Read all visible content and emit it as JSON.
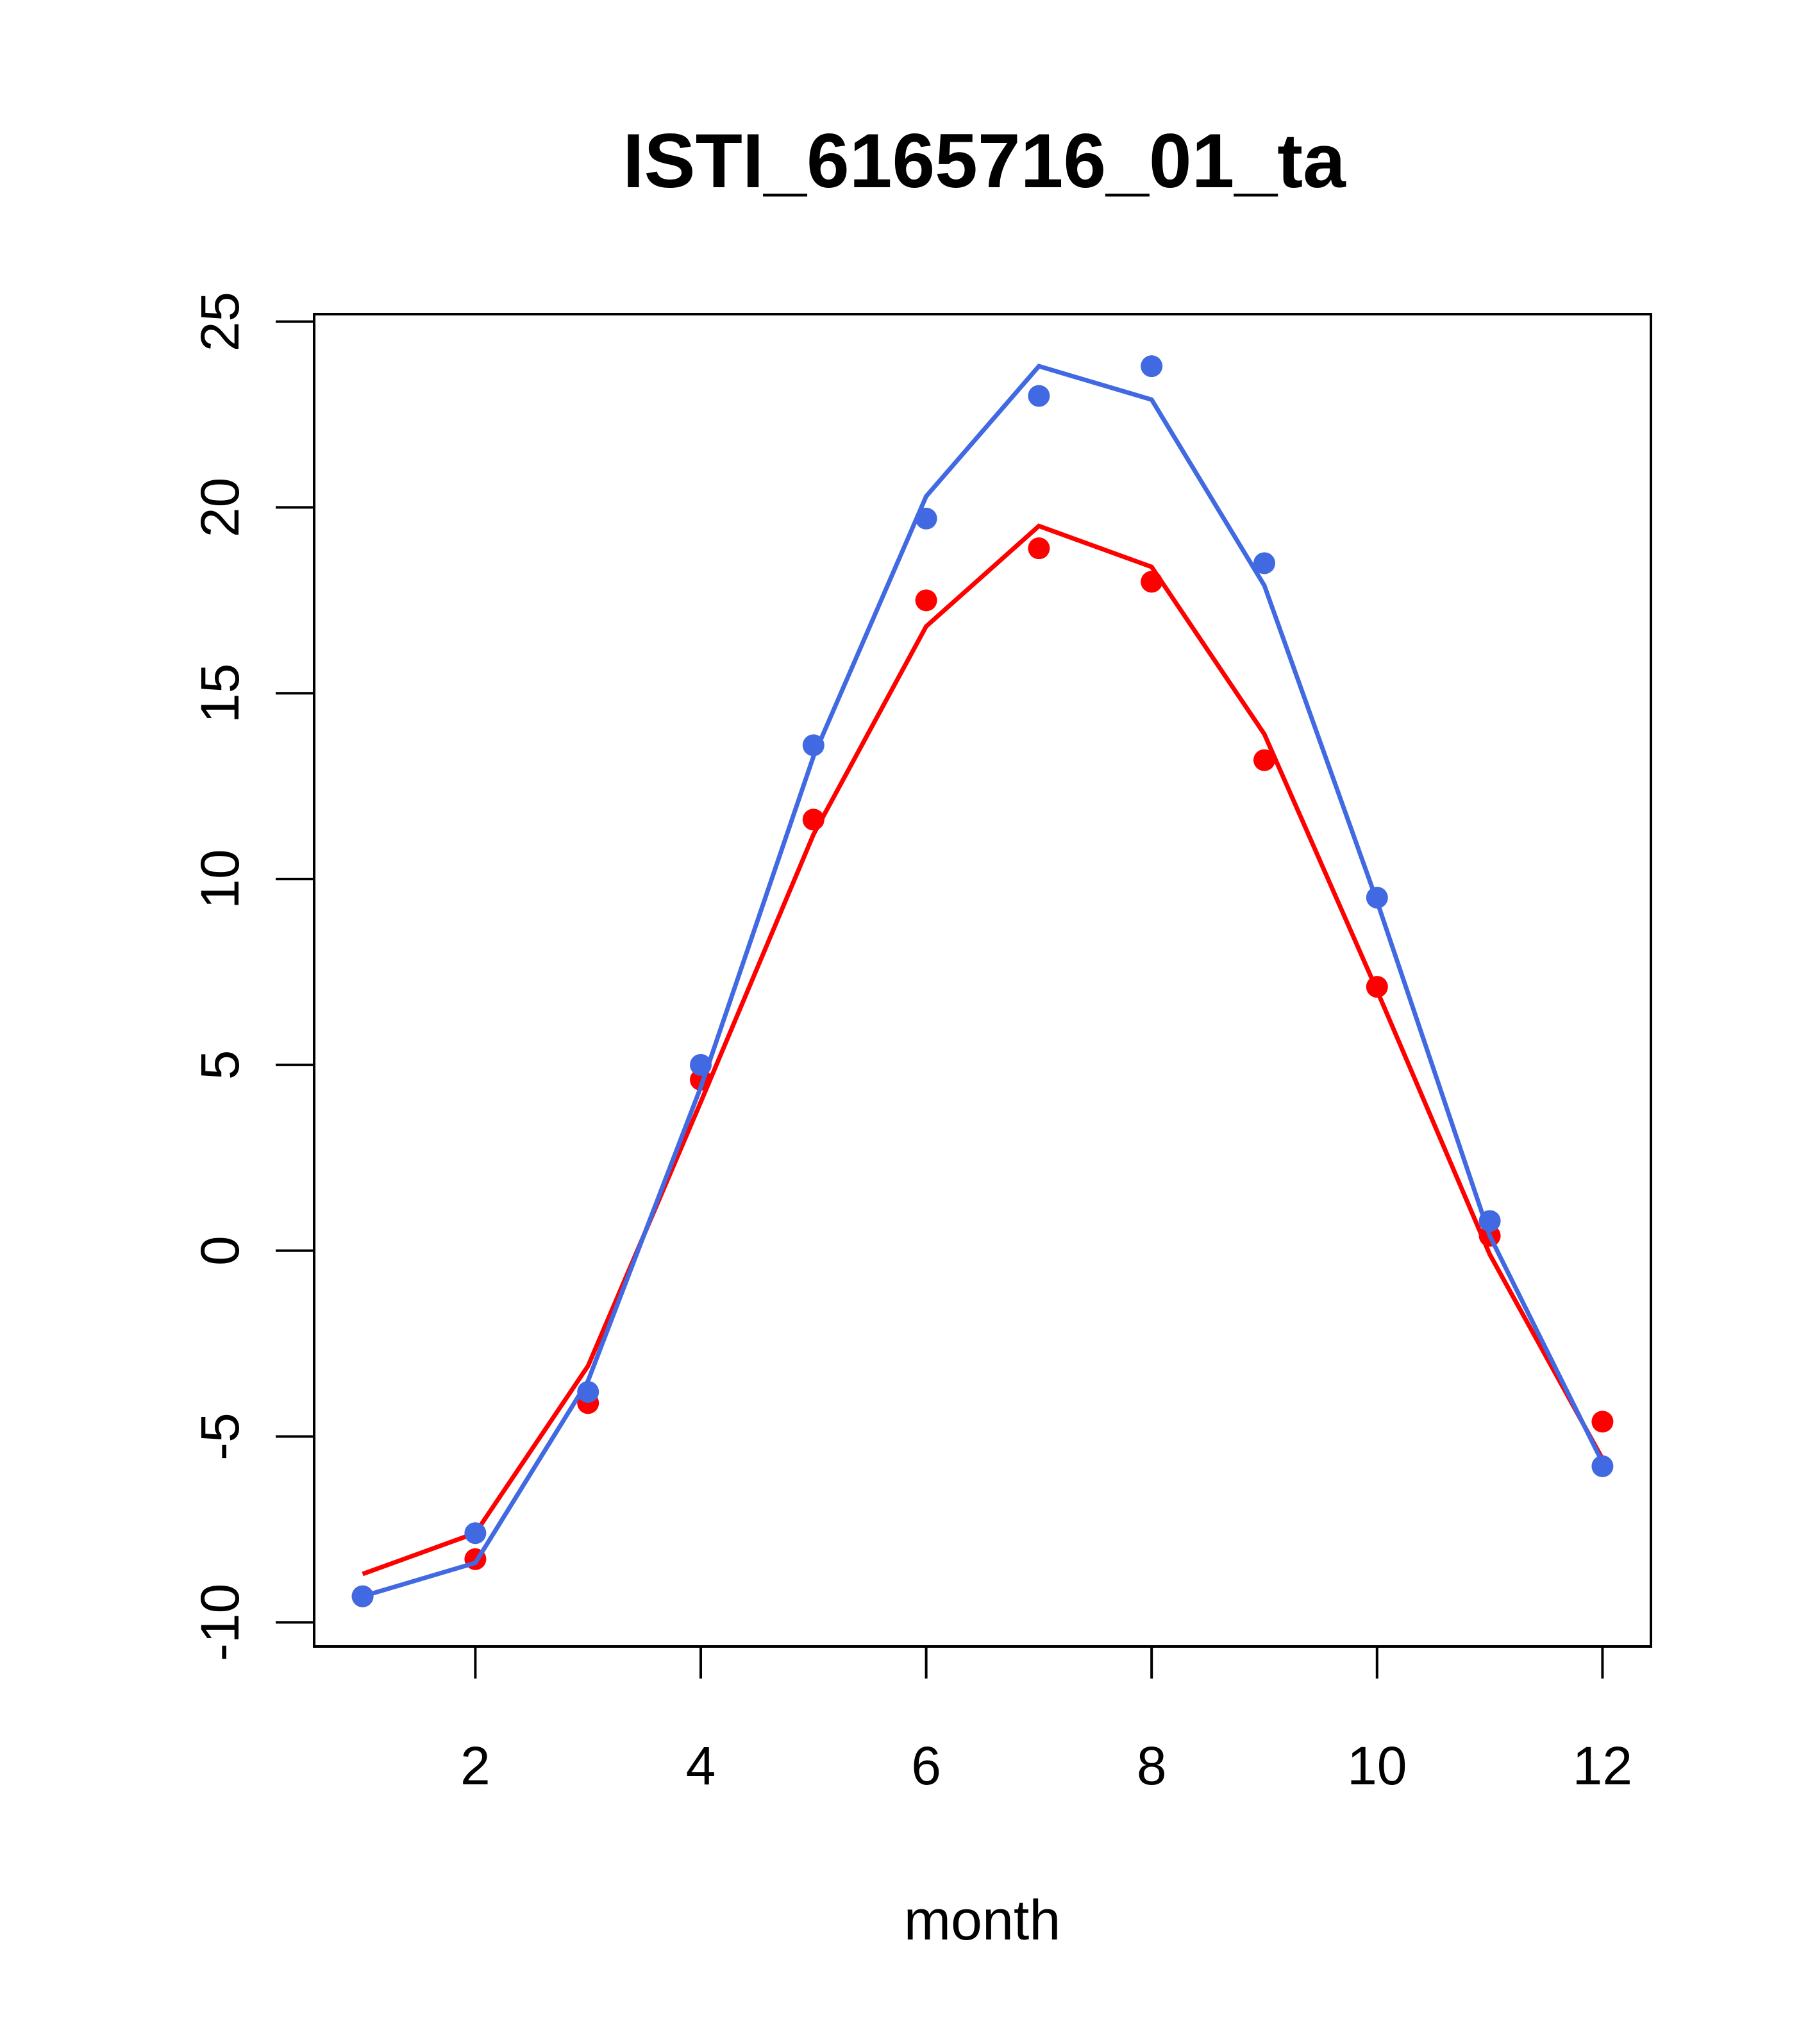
{
  "chart_data": {
    "type": "line",
    "title": "ISTI_6165716_01_ta",
    "xlabel": "month",
    "ylabel": "",
    "xlim": [
      0.57,
      12.43
    ],
    "ylim": [
      -10.65,
      25.2
    ],
    "xticks": [
      2,
      4,
      6,
      8,
      10,
      12
    ],
    "yticks": [
      -10,
      -5,
      0,
      5,
      10,
      15,
      20,
      25
    ],
    "xtick_labels": [
      "2",
      "4",
      "6",
      "8",
      "10",
      "12"
    ],
    "ytick_labels": [
      "-10",
      "-5",
      "0",
      "5",
      "10",
      "15",
      "20",
      "25"
    ],
    "grid": false,
    "legend": "none",
    "x": [
      1,
      2,
      3,
      4,
      5,
      6,
      7,
      8,
      9,
      10,
      11,
      12
    ],
    "series": [
      {
        "color": "#FF0000",
        "points": [
          -9.3,
          -8.3,
          -4.1,
          4.6,
          11.6,
          17.5,
          18.9,
          18.0,
          13.2,
          7.1,
          0.4,
          -4.6
        ],
        "line": [
          -8.7,
          -7.6,
          -3.1,
          4.0,
          11.2,
          16.8,
          19.5,
          18.4,
          13.9,
          7.0,
          -0.1,
          -5.6
        ]
      },
      {
        "color": "#4169E1",
        "points": [
          -9.3,
          -7.6,
          -3.8,
          5.0,
          13.6,
          19.7,
          23.0,
          23.8,
          18.5,
          9.5,
          0.8,
          -5.8
        ],
        "line": [
          -9.3,
          -8.4,
          -3.5,
          4.4,
          13.3,
          20.3,
          23.8,
          22.9,
          17.9,
          9.4,
          0.4,
          -5.7
        ]
      }
    ]
  }
}
